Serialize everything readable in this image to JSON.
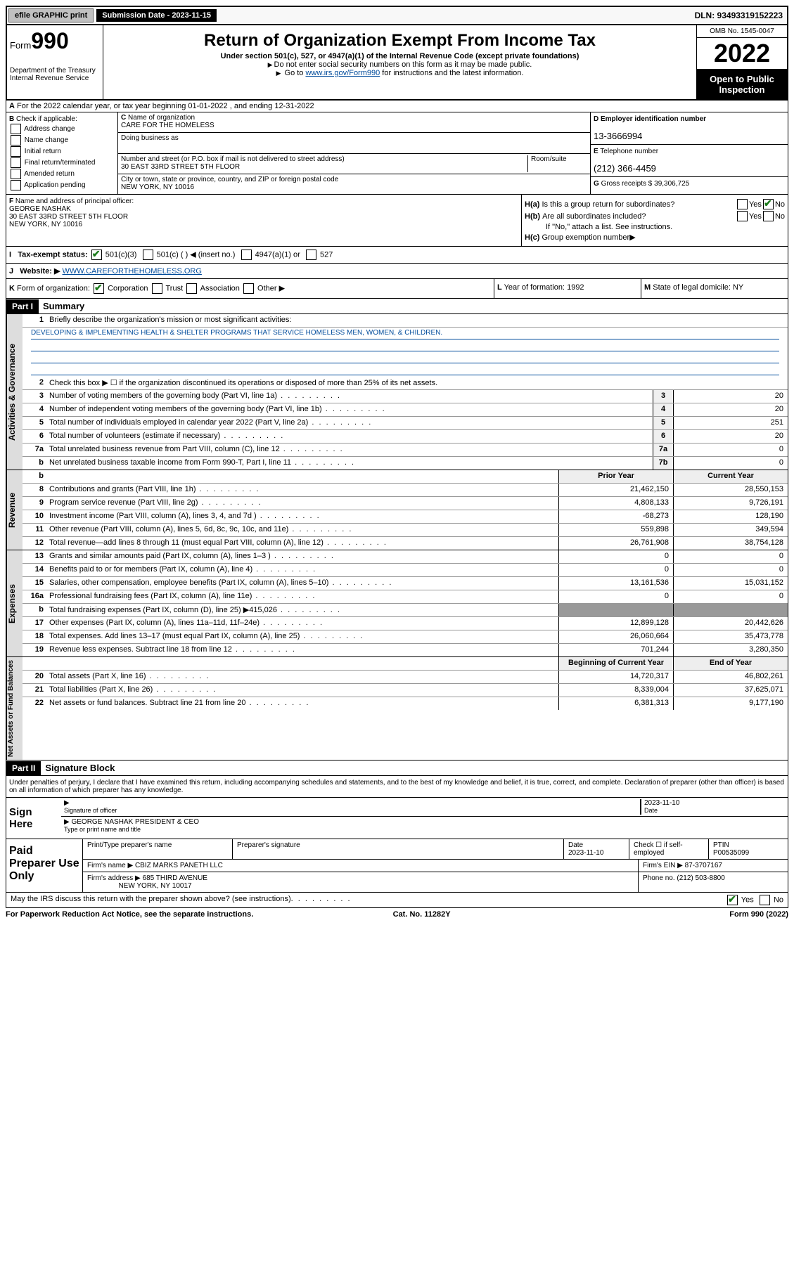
{
  "top": {
    "efile": "efile GRAPHIC print",
    "sub_label": "Submission Date - 2023-11-15",
    "dln": "DLN: 93493319152223"
  },
  "header": {
    "form_prefix": "Form",
    "form_num": "990",
    "dept": "Department of the Treasury Internal Revenue Service",
    "title": "Return of Organization Exempt From Income Tax",
    "sub1": "Under section 501(c), 527, or 4947(a)(1) of the Internal Revenue Code (except private foundations)",
    "sub2": "Do not enter social security numbers on this form as it may be made public.",
    "sub3_pre": "Go to ",
    "sub3_link": "www.irs.gov/Form990",
    "sub3_post": " for instructions and the latest information.",
    "omb": "OMB No. 1545-0047",
    "year": "2022",
    "open": "Open to Public Inspection"
  },
  "a": {
    "text": "For the 2022 calendar year, or tax year beginning 01-01-2022   , and ending 12-31-2022"
  },
  "b": {
    "label": "Check if applicable:",
    "items": [
      "Address change",
      "Name change",
      "Initial return",
      "Final return/terminated",
      "Amended return",
      "Application pending"
    ]
  },
  "c": {
    "name_label": "Name of organization",
    "name": "CARE FOR THE HOMELESS",
    "dba_label": "Doing business as",
    "dba": "",
    "street_label": "Number and street (or P.O. box if mail is not delivered to street address)",
    "room_label": "Room/suite",
    "street": "30 EAST 33RD STREET 5TH FLOOR",
    "city_label": "City or town, state or province, country, and ZIP or foreign postal code",
    "city": "NEW YORK, NY  10016"
  },
  "d": {
    "label": "Employer identification number",
    "val": "13-3666994"
  },
  "e": {
    "label": "Telephone number",
    "val": "(212) 366-4459"
  },
  "g": {
    "label": "Gross receipts $",
    "val": "39,306,725"
  },
  "f": {
    "label": "Name and address of principal officer:",
    "name": "GEORGE NASHAK",
    "addr1": "30 EAST 33RD STREET 5TH FLOOR",
    "addr2": "NEW YORK, NY  10016"
  },
  "h": {
    "a": "Is this a group return for subordinates?",
    "b": "Are all subordinates included?",
    "note": "If \"No,\" attach a list. See instructions.",
    "c": "Group exemption number"
  },
  "i": {
    "label": "Tax-exempt status:",
    "opts": [
      "501(c)(3)",
      "501(c) (  ) ◀ (insert no.)",
      "4947(a)(1) or",
      "527"
    ]
  },
  "j": {
    "label": "Website:",
    "val": "WWW.CAREFORTHEHOMELESS.ORG"
  },
  "k": {
    "label": "Form of organization:",
    "opts": [
      "Corporation",
      "Trust",
      "Association",
      "Other"
    ]
  },
  "l": {
    "label": "Year of formation:",
    "val": "1992"
  },
  "m": {
    "label": "State of legal domicile:",
    "val": "NY"
  },
  "part1": {
    "label": "Part I",
    "title": "Summary",
    "q1": "Briefly describe the organization's mission or most significant activities:",
    "mission": "DEVELOPING & IMPLEMENTING HEALTH & SHELTER PROGRAMS THAT SERVICE HOMELESS MEN, WOMEN, & CHILDREN.",
    "q2": "Check this box ▶ ☐ if the organization discontinued its operations or disposed of more than 25% of its net assets.",
    "rows_gov": [
      {
        "n": "3",
        "t": "Number of voting members of the governing body (Part VI, line 1a)",
        "b": "3",
        "v": "20"
      },
      {
        "n": "4",
        "t": "Number of independent voting members of the governing body (Part VI, line 1b)",
        "b": "4",
        "v": "20"
      },
      {
        "n": "5",
        "t": "Total number of individuals employed in calendar year 2022 (Part V, line 2a)",
        "b": "5",
        "v": "251"
      },
      {
        "n": "6",
        "t": "Total number of volunteers (estimate if necessary)",
        "b": "6",
        "v": "20"
      },
      {
        "n": "7a",
        "t": "Total unrelated business revenue from Part VIII, column (C), line 12",
        "b": "7a",
        "v": "0"
      },
      {
        "n": "b",
        "t": "Net unrelated business taxable income from Form 990-T, Part I, line 11",
        "b": "7b",
        "v": "0"
      }
    ],
    "hdr_prior": "Prior Year",
    "hdr_curr": "Current Year",
    "rows_rev": [
      {
        "n": "8",
        "t": "Contributions and grants (Part VIII, line 1h)",
        "p": "21,462,150",
        "c": "28,550,153"
      },
      {
        "n": "9",
        "t": "Program service revenue (Part VIII, line 2g)",
        "p": "4,808,133",
        "c": "9,726,191"
      },
      {
        "n": "10",
        "t": "Investment income (Part VIII, column (A), lines 3, 4, and 7d )",
        "p": "-68,273",
        "c": "128,190"
      },
      {
        "n": "11",
        "t": "Other revenue (Part VIII, column (A), lines 5, 6d, 8c, 9c, 10c, and 11e)",
        "p": "559,898",
        "c": "349,594"
      },
      {
        "n": "12",
        "t": "Total revenue—add lines 8 through 11 (must equal Part VIII, column (A), line 12)",
        "p": "26,761,908",
        "c": "38,754,128"
      }
    ],
    "rows_exp": [
      {
        "n": "13",
        "t": "Grants and similar amounts paid (Part IX, column (A), lines 1–3 )",
        "p": "0",
        "c": "0"
      },
      {
        "n": "14",
        "t": "Benefits paid to or for members (Part IX, column (A), line 4)",
        "p": "0",
        "c": "0"
      },
      {
        "n": "15",
        "t": "Salaries, other compensation, employee benefits (Part IX, column (A), lines 5–10)",
        "p": "13,161,536",
        "c": "15,031,152"
      },
      {
        "n": "16a",
        "t": "Professional fundraising fees (Part IX, column (A), line 11e)",
        "p": "0",
        "c": "0"
      },
      {
        "n": "b",
        "t": "Total fundraising expenses (Part IX, column (D), line 25) ▶415,026",
        "p": "shade",
        "c": "shade"
      },
      {
        "n": "17",
        "t": "Other expenses (Part IX, column (A), lines 11a–11d, 11f–24e)",
        "p": "12,899,128",
        "c": "20,442,626"
      },
      {
        "n": "18",
        "t": "Total expenses. Add lines 13–17 (must equal Part IX, column (A), line 25)",
        "p": "26,060,664",
        "c": "35,473,778"
      },
      {
        "n": "19",
        "t": "Revenue less expenses. Subtract line 18 from line 12",
        "p": "701,244",
        "c": "3,280,350"
      }
    ],
    "hdr_beg": "Beginning of Current Year",
    "hdr_end": "End of Year",
    "rows_net": [
      {
        "n": "20",
        "t": "Total assets (Part X, line 16)",
        "p": "14,720,317",
        "c": "46,802,261"
      },
      {
        "n": "21",
        "t": "Total liabilities (Part X, line 26)",
        "p": "8,339,004",
        "c": "37,625,071"
      },
      {
        "n": "22",
        "t": "Net assets or fund balances. Subtract line 21 from line 20",
        "p": "6,381,313",
        "c": "9,177,190"
      }
    ]
  },
  "part2": {
    "label": "Part II",
    "title": "Signature Block",
    "decl": "Under penalties of perjury, I declare that I have examined this return, including accompanying schedules and statements, and to the best of my knowledge and belief, it is true, correct, and complete. Declaration of preparer (other than officer) is based on all information of which preparer has any knowledge."
  },
  "sign": {
    "left": "Sign Here",
    "sig_label": "Signature of officer",
    "date_label": "Date",
    "date": "2023-11-10",
    "name": "GEORGE NASHAK  PRESIDENT & CEO",
    "name_label": "Type or print name and title"
  },
  "prep": {
    "left": "Paid Preparer Use Only",
    "h1": "Print/Type preparer's name",
    "h2": "Preparer's signature",
    "h3": "Date",
    "date": "2023-11-10",
    "h4": "Check ☐ if self-employed",
    "h5": "PTIN",
    "ptin": "P00535099",
    "firm_label": "Firm's name    ▶",
    "firm": "CBIZ MARKS PANETH LLC",
    "ein_label": "Firm's EIN ▶",
    "ein": "87-3707167",
    "addr_label": "Firm's address ▶",
    "addr1": "685 THIRD AVENUE",
    "addr2": "NEW YORK, NY  10017",
    "phone_label": "Phone no.",
    "phone": "(212) 503-8800"
  },
  "footer": {
    "q": "May the IRS discuss this return with the preparer shown above? (see instructions)",
    "yes": "Yes",
    "no": "No",
    "paperwork": "For Paperwork Reduction Act Notice, see the separate instructions.",
    "cat": "Cat. No. 11282Y",
    "form": "Form 990 (2022)"
  }
}
